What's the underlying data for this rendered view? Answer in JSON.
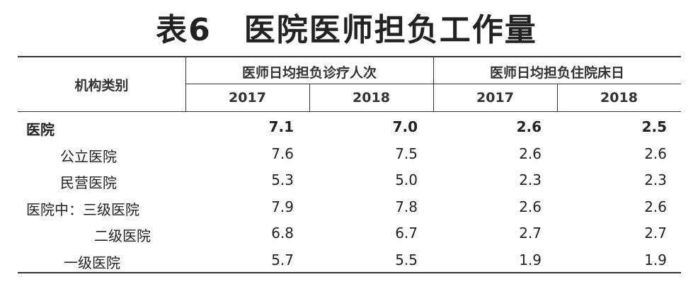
{
  "title": "表6　医院医师担负工作量",
  "header": {
    "row_label": "机构类别",
    "groups": [
      "医师日均担负诊疗人次",
      "医师日均担负住院床日"
    ],
    "years": [
      "2017",
      "2018",
      "2017",
      "2018"
    ]
  },
  "rows": [
    {
      "label": "医院",
      "values": [
        "7.1",
        "7.0",
        "2.6",
        "2.5"
      ]
    },
    {
      "label": "公立医院",
      "values": [
        "7.6",
        "7.5",
        "2.6",
        "2.6"
      ]
    },
    {
      "label": "民营医院",
      "values": [
        "5.3",
        "5.0",
        "2.3",
        "2.3"
      ]
    },
    {
      "label": "医院中：三级医院",
      "values": [
        "7.9",
        "7.8",
        "2.6",
        "2.6"
      ]
    },
    {
      "label": "二级医院",
      "values": [
        "6.8",
        "6.7",
        "2.7",
        "2.7"
      ]
    },
    {
      "label": "一级医院",
      "values": [
        "5.7",
        "5.5",
        "1.9",
        "1.9"
      ]
    }
  ]
}
